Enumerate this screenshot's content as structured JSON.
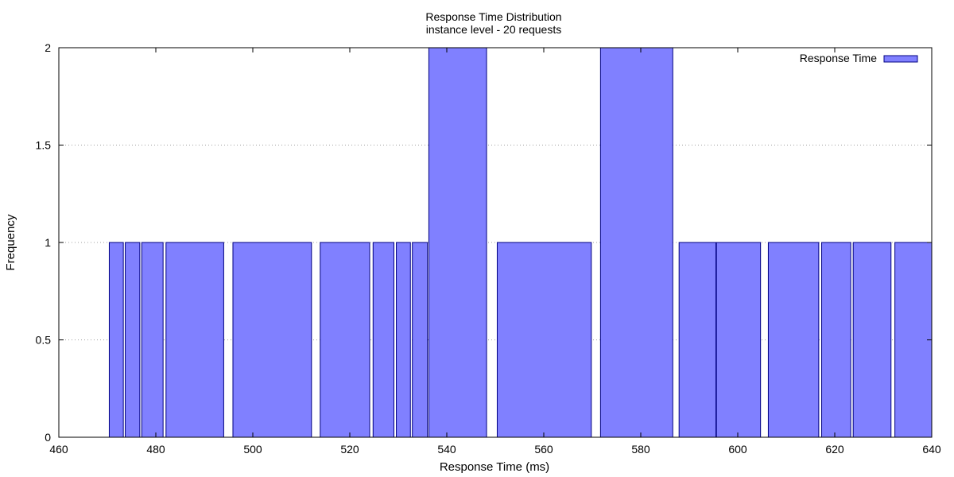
{
  "chart_data": {
    "type": "bar",
    "title": "Response Time Distribution",
    "subtitle": "instance level - 20 requests",
    "xlabel": "Response Time (ms)",
    "ylabel": "Frequency",
    "xlim": [
      460,
      640
    ],
    "ylim": [
      0,
      2
    ],
    "xticks": [
      "460",
      "480",
      "500",
      "520",
      "540",
      "560",
      "580",
      "600",
      "620",
      "640"
    ],
    "yticks": [
      "0",
      "0.5",
      "1",
      "1.5",
      "2"
    ],
    "grid": "horizontal-dotted",
    "legend_position": "top-right",
    "series": [
      {
        "name": "Response Time",
        "color": "#8080ff",
        "edge_color": "#000080",
        "bars": [
          {
            "x0": 470.4,
            "x1": 473.3,
            "value": 1
          },
          {
            "x0": 473.7,
            "x1": 476.7,
            "value": 1
          },
          {
            "x0": 477.1,
            "x1": 481.5,
            "value": 1
          },
          {
            "x0": 482.1,
            "x1": 494.0,
            "value": 1
          },
          {
            "x0": 495.9,
            "x1": 512.1,
            "value": 1
          },
          {
            "x0": 513.9,
            "x1": 524.1,
            "value": 1
          },
          {
            "x0": 524.8,
            "x1": 529.1,
            "value": 1
          },
          {
            "x0": 529.6,
            "x1": 532.5,
            "value": 1
          },
          {
            "x0": 532.9,
            "x1": 536.0,
            "value": 1
          },
          {
            "x0": 536.3,
            "x1": 548.2,
            "value": 2
          },
          {
            "x0": 550.4,
            "x1": 569.8,
            "value": 1
          },
          {
            "x0": 571.7,
            "x1": 586.6,
            "value": 2
          },
          {
            "x0": 587.9,
            "x1": 595.5,
            "value": 1
          },
          {
            "x0": 595.6,
            "x1": 604.7,
            "value": 1
          },
          {
            "x0": 606.3,
            "x1": 616.7,
            "value": 1
          },
          {
            "x0": 617.3,
            "x1": 623.3,
            "value": 1
          },
          {
            "x0": 623.8,
            "x1": 631.6,
            "value": 1
          },
          {
            "x0": 632.4,
            "x1": 640.0,
            "value": 1
          }
        ]
      }
    ]
  }
}
